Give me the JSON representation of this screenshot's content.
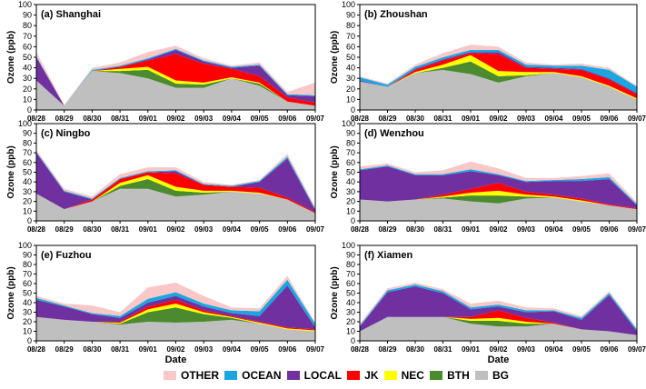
{
  "chart_data": [
    {
      "type": "area",
      "title": "(a) Shanghai",
      "ylabel": "Ozone (ppb)",
      "xlabel": "",
      "ylim": [
        0,
        100
      ],
      "yticks": [
        0,
        10,
        20,
        30,
        40,
        50,
        60,
        70,
        80,
        90,
        100
      ],
      "x": [
        "08/28",
        "08/29",
        "08/30",
        "08/31",
        "09/01",
        "09/02",
        "09/03",
        "09/04",
        "09/05",
        "09/06",
        "09/07"
      ],
      "series": [
        {
          "name": "BG",
          "values": [
            28,
            4,
            37,
            35,
            30,
            21,
            21,
            30,
            23,
            8,
            4
          ]
        },
        {
          "name": "BTH",
          "values": [
            0,
            0,
            0,
            2,
            8,
            4,
            3,
            0,
            2,
            0,
            0
          ]
        },
        {
          "name": "NEC",
          "values": [
            0,
            0,
            0,
            2,
            3,
            3,
            2,
            1,
            1,
            0,
            0
          ]
        },
        {
          "name": "JK",
          "values": [
            0,
            0,
            0,
            2,
            6,
            25,
            18,
            8,
            6,
            4,
            3
          ]
        },
        {
          "name": "LOCAL",
          "values": [
            22,
            0,
            0,
            0,
            1,
            4,
            2,
            1,
            10,
            2,
            6
          ]
        },
        {
          "name": "OCEAN",
          "values": [
            1,
            0,
            1,
            1,
            1,
            1,
            1,
            1,
            1,
            1,
            1
          ]
        },
        {
          "name": "OTHER",
          "values": [
            4,
            1,
            2,
            3,
            6,
            3,
            2,
            1,
            2,
            2,
            12
          ]
        }
      ]
    },
    {
      "type": "area",
      "title": "(b) Zhoushan",
      "ylabel": "Ozone (ppb)",
      "xlabel": "",
      "ylim": [
        0,
        100
      ],
      "yticks": [
        0,
        10,
        20,
        30,
        40,
        50,
        60,
        70,
        80,
        90,
        100
      ],
      "x": [
        "08/28",
        "08/29",
        "08/30",
        "08/31",
        "09/01",
        "09/02",
        "09/03",
        "09/04",
        "09/05",
        "09/06",
        "09/07"
      ],
      "series": [
        {
          "name": "BG",
          "values": [
            27,
            22,
            35,
            38,
            34,
            26,
            32,
            35,
            31,
            22,
            10
          ]
        },
        {
          "name": "BTH",
          "values": [
            0,
            0,
            0,
            2,
            12,
            6,
            1,
            0,
            0,
            0,
            0
          ]
        },
        {
          "name": "NEC",
          "values": [
            0,
            0,
            1,
            3,
            6,
            5,
            3,
            1,
            1,
            1,
            1
          ]
        },
        {
          "name": "JK",
          "values": [
            0,
            0,
            2,
            4,
            2,
            16,
            4,
            3,
            6,
            6,
            4
          ]
        },
        {
          "name": "LOCAL",
          "values": [
            1,
            0,
            1,
            1,
            1,
            2,
            1,
            1,
            1,
            1,
            1
          ]
        },
        {
          "name": "OCEAN",
          "values": [
            3,
            2,
            2,
            2,
            2,
            2,
            2,
            2,
            3,
            8,
            6
          ]
        },
        {
          "name": "OTHER",
          "values": [
            1,
            1,
            2,
            4,
            5,
            3,
            2,
            1,
            2,
            2,
            1
          ]
        }
      ]
    },
    {
      "type": "area",
      "title": "(c) Ningbo",
      "ylabel": "Ozone (ppb)",
      "xlabel": "",
      "ylim": [
        0,
        100
      ],
      "yticks": [
        0,
        10,
        20,
        30,
        40,
        50,
        60,
        70,
        80,
        90,
        100
      ],
      "x": [
        "08/28",
        "08/29",
        "08/30",
        "08/31",
        "09/01",
        "09/02",
        "09/03",
        "09/04",
        "09/05",
        "09/06",
        "09/07"
      ],
      "series": [
        {
          "name": "BG",
          "values": [
            28,
            12,
            20,
            33,
            33,
            25,
            27,
            30,
            28,
            22,
            8
          ]
        },
        {
          "name": "BTH",
          "values": [
            0,
            0,
            0,
            3,
            10,
            6,
            2,
            0,
            0,
            0,
            0
          ]
        },
        {
          "name": "NEC",
          "values": [
            0,
            0,
            0,
            3,
            4,
            4,
            2,
            1,
            1,
            0,
            0
          ]
        },
        {
          "name": "JK",
          "values": [
            0,
            0,
            2,
            4,
            3,
            14,
            6,
            4,
            5,
            2,
            1
          ]
        },
        {
          "name": "LOCAL",
          "values": [
            42,
            18,
            0,
            0,
            0,
            2,
            0,
            0,
            6,
            40,
            2
          ]
        },
        {
          "name": "OCEAN",
          "values": [
            1,
            1,
            1,
            1,
            1,
            1,
            1,
            1,
            1,
            2,
            1
          ]
        },
        {
          "name": "OTHER",
          "values": [
            2,
            2,
            2,
            4,
            4,
            3,
            2,
            1,
            1,
            3,
            2
          ]
        }
      ]
    },
    {
      "type": "area",
      "title": "(d) Wenzhou",
      "ylabel": "Ozone (ppb)",
      "xlabel": "",
      "ylim": [
        0,
        100
      ],
      "yticks": [
        0,
        10,
        20,
        30,
        40,
        50,
        60,
        70,
        80,
        90,
        100
      ],
      "x": [
        "08/28",
        "08/29",
        "08/30",
        "08/31",
        "09/01",
        "09/02",
        "09/03",
        "09/04",
        "09/05",
        "09/06",
        "09/07"
      ],
      "series": [
        {
          "name": "BG",
          "values": [
            22,
            20,
            22,
            23,
            20,
            18,
            23,
            24,
            20,
            16,
            12
          ]
        },
        {
          "name": "BTH",
          "values": [
            0,
            0,
            0,
            1,
            6,
            8,
            2,
            0,
            0,
            0,
            0
          ]
        },
        {
          "name": "NEC",
          "values": [
            0,
            0,
            0,
            1,
            3,
            5,
            2,
            1,
            1,
            0,
            0
          ]
        },
        {
          "name": "JK",
          "values": [
            0,
            0,
            0,
            2,
            4,
            8,
            3,
            2,
            2,
            1,
            1
          ]
        },
        {
          "name": "LOCAL",
          "values": [
            30,
            36,
            25,
            20,
            18,
            8,
            10,
            14,
            18,
            26,
            3
          ]
        },
        {
          "name": "OCEAN",
          "values": [
            1,
            1,
            1,
            1,
            2,
            1,
            1,
            1,
            2,
            2,
            1
          ]
        },
        {
          "name": "OTHER",
          "values": [
            3,
            2,
            2,
            4,
            8,
            6,
            3,
            2,
            3,
            4,
            2
          ]
        }
      ]
    },
    {
      "type": "area",
      "title": "(e) Fuzhou",
      "ylabel": "Ozone (ppb)",
      "xlabel": "Date",
      "ylim": [
        0,
        100
      ],
      "yticks": [
        0,
        10,
        20,
        30,
        40,
        50,
        60,
        70,
        80,
        90,
        100
      ],
      "x": [
        "08/28",
        "08/29",
        "08/30",
        "08/31",
        "09/01",
        "09/02",
        "09/03",
        "09/04",
        "09/05",
        "09/06",
        "09/07"
      ],
      "series": [
        {
          "name": "BG",
          "values": [
            25,
            22,
            20,
            17,
            20,
            19,
            20,
            22,
            18,
            12,
            10
          ]
        },
        {
          "name": "BTH",
          "values": [
            0,
            0,
            0,
            1,
            10,
            16,
            8,
            2,
            0,
            0,
            0
          ]
        },
        {
          "name": "NEC",
          "values": [
            0,
            0,
            0,
            1,
            3,
            4,
            2,
            1,
            1,
            1,
            1
          ]
        },
        {
          "name": "JK",
          "values": [
            0,
            0,
            0,
            1,
            3,
            4,
            2,
            1,
            1,
            1,
            1
          ]
        },
        {
          "name": "LOCAL",
          "values": [
            18,
            14,
            8,
            4,
            4,
            4,
            4,
            3,
            6,
            44,
            2
          ]
        },
        {
          "name": "OCEAN",
          "values": [
            2,
            1,
            1,
            2,
            4,
            4,
            3,
            3,
            5,
            6,
            4
          ]
        },
        {
          "name": "OTHER",
          "values": [
            2,
            2,
            8,
            4,
            12,
            10,
            8,
            3,
            3,
            4,
            1
          ]
        }
      ]
    },
    {
      "type": "area",
      "title": "(f) Xiamen",
      "ylabel": "Ozone (ppb)",
      "xlabel": "Date",
      "ylim": [
        0,
        100
      ],
      "yticks": [
        0,
        10,
        20,
        30,
        40,
        50,
        60,
        70,
        80,
        90,
        100
      ],
      "x": [
        "08/28",
        "08/29",
        "08/30",
        "08/31",
        "09/01",
        "09/02",
        "09/03",
        "09/04",
        "09/05",
        "09/06",
        "09/07"
      ],
      "series": [
        {
          "name": "BG",
          "values": [
            10,
            25,
            25,
            25,
            18,
            15,
            15,
            18,
            12,
            10,
            6
          ]
        },
        {
          "name": "BTH",
          "values": [
            0,
            0,
            0,
            0,
            3,
            6,
            3,
            0,
            0,
            0,
            0
          ]
        },
        {
          "name": "NEC",
          "values": [
            0,
            0,
            0,
            0,
            2,
            3,
            2,
            0,
            0,
            0,
            0
          ]
        },
        {
          "name": "JK",
          "values": [
            0,
            0,
            0,
            0,
            2,
            8,
            4,
            1,
            0,
            0,
            0
          ]
        },
        {
          "name": "LOCAL",
          "values": [
            5,
            26,
            32,
            25,
            8,
            4,
            6,
            12,
            10,
            38,
            4
          ]
        },
        {
          "name": "OCEAN",
          "values": [
            1,
            2,
            2,
            2,
            2,
            2,
            2,
            1,
            2,
            2,
            2
          ]
        },
        {
          "name": "OTHER",
          "values": [
            2,
            2,
            2,
            2,
            4,
            4,
            3,
            2,
            2,
            2,
            1
          ]
        }
      ]
    }
  ],
  "legend": {
    "placement": "bottom",
    "items": [
      {
        "label": "OTHER",
        "color": "#F8C7C7"
      },
      {
        "label": "OCEAN",
        "color": "#1AA6E0"
      },
      {
        "label": "LOCAL",
        "color": "#7030A0"
      },
      {
        "label": "JK",
        "color": "#FF0000"
      },
      {
        "label": "NEC",
        "color": "#FFFF00"
      },
      {
        "label": "BTH",
        "color": "#4B8A2E"
      },
      {
        "label": "BG",
        "color": "#BFBFBF"
      }
    ]
  },
  "colors": {
    "BG": "#BFBFBF",
    "BTH": "#4B8A2E",
    "NEC": "#FFFF00",
    "JK": "#FF0000",
    "LOCAL": "#7030A0",
    "OCEAN": "#1AA6E0",
    "OTHER": "#F8C7C7"
  }
}
